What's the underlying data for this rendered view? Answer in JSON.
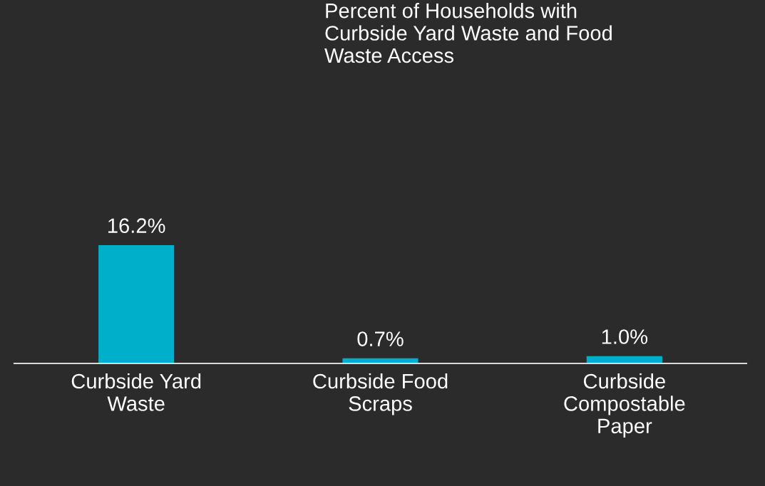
{
  "chart_data": {
    "type": "bar",
    "title": "Percent of Households with\nCurbside Yard Waste and Food\nWaste Access",
    "categories": [
      "Curbside Yard\nWaste",
      "Curbside Food\nScraps",
      "Curbside\nCompostable\nPaper"
    ],
    "values": [
      16.2,
      0.7,
      1.0
    ],
    "color": "#00b0cb",
    "value_labels": [
      "16.2%",
      "0.7%",
      "1.0%"
    ]
  }
}
